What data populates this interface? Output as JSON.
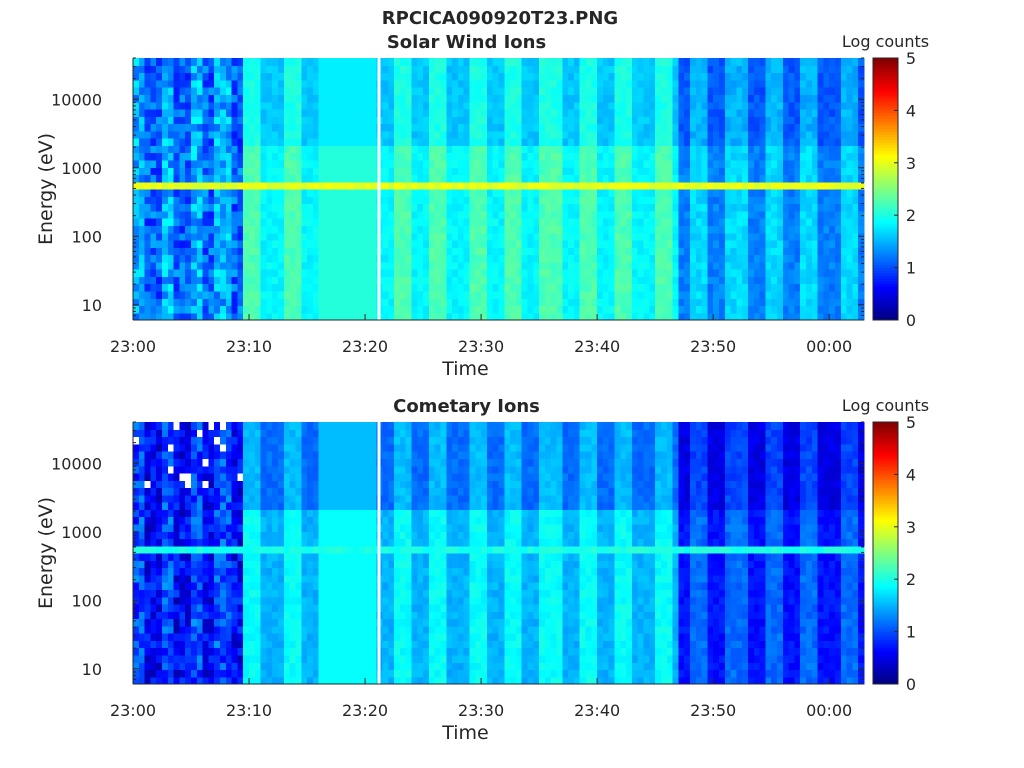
{
  "figure": {
    "filename_title": "RPCICA090920T23.PNG"
  },
  "chart_data": [
    {
      "type": "heatmap",
      "title": "Solar Wind Ions",
      "xlabel": "Time",
      "ylabel": "Energy (eV)",
      "y_scale": "log",
      "ylim": [
        6,
        40000
      ],
      "xlim_minutes_after_2300": [
        0,
        63
      ],
      "x_ticks": [
        {
          "label": "23:00",
          "minute": 0
        },
        {
          "label": "23:10",
          "minute": 10
        },
        {
          "label": "23:20",
          "minute": 20
        },
        {
          "label": "23:30",
          "minute": 30
        },
        {
          "label": "23:40",
          "minute": 40
        },
        {
          "label": "23:50",
          "minute": 50
        },
        {
          "label": "00:00",
          "minute": 60
        }
      ],
      "y_ticks": [
        {
          "label": "10",
          "value": 10
        },
        {
          "label": "100",
          "value": 100
        },
        {
          "label": "1000",
          "value": 1000
        },
        {
          "label": "10000",
          "value": 10000
        }
      ],
      "colorbar": {
        "label": "Log counts",
        "min": 0,
        "max": 5,
        "ticks": [
          "0",
          "1",
          "2",
          "3",
          "4",
          "5"
        ],
        "colormap": "jet"
      },
      "beam_energy_eV": 580,
      "beam_log_counts": 3.0,
      "gap_minute": 21.2
    },
    {
      "type": "heatmap",
      "title": "Cometary Ions",
      "xlabel": "Time",
      "ylabel": "Energy (eV)",
      "y_scale": "log",
      "ylim": [
        6,
        40000
      ],
      "xlim_minutes_after_2300": [
        0,
        63
      ],
      "x_ticks": [
        {
          "label": "23:00",
          "minute": 0
        },
        {
          "label": "23:10",
          "minute": 10
        },
        {
          "label": "23:20",
          "minute": 20
        },
        {
          "label": "23:30",
          "minute": 30
        },
        {
          "label": "23:40",
          "minute": 40
        },
        {
          "label": "23:50",
          "minute": 50
        },
        {
          "label": "00:00",
          "minute": 60
        }
      ],
      "y_ticks": [
        {
          "label": "10",
          "value": 10
        },
        {
          "label": "100",
          "value": 100
        },
        {
          "label": "1000",
          "value": 1000
        },
        {
          "label": "10000",
          "value": 10000
        }
      ],
      "colorbar": {
        "label": "Log counts",
        "min": 0,
        "max": 5,
        "ticks": [
          "0",
          "1",
          "2",
          "3",
          "4",
          "5"
        ],
        "colormap": "jet"
      },
      "beam_energy_eV": 580,
      "beam_log_counts": 2.0,
      "gap_minute": 21.2
    }
  ]
}
